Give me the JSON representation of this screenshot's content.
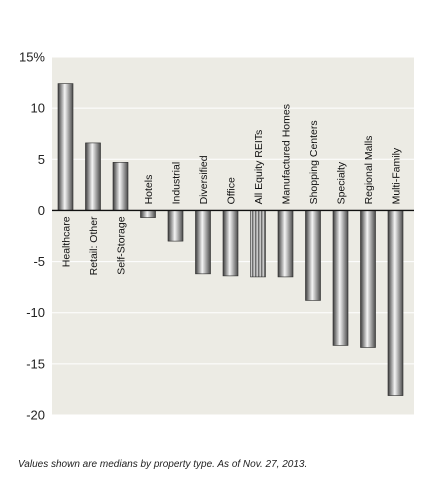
{
  "chart_data": {
    "type": "bar",
    "title": "",
    "xlabel": "",
    "ylabel": "",
    "ylim": [
      -20,
      15
    ],
    "yticks": [
      15,
      10,
      5,
      0,
      -5,
      -10,
      -15,
      -20
    ],
    "ytick_labels": [
      "15%",
      "10",
      "5",
      "0",
      "-5",
      "-10",
      "-15",
      "-20"
    ],
    "grid": true,
    "categories": [
      "Healthcare",
      "Retail: Other",
      "Self-Storage",
      "Hotels",
      "Industrial",
      "Diversified",
      "Office",
      "All Equity REITs",
      "Manufactured Homes",
      "Shopping Centers",
      "Specialty",
      "Regional Malls",
      "Multi-Family"
    ],
    "values": [
      12.4,
      6.6,
      4.7,
      -0.7,
      -3.0,
      -6.2,
      -6.4,
      -6.5,
      -6.5,
      -8.8,
      -13.2,
      -13.4,
      -18.1
    ],
    "highlighted_category": "All Equity REITs",
    "colors": {
      "plot_background": "#ecebe4",
      "grid": "#ffffff",
      "bar_dark": "#4a4a4a",
      "bar_light": "#f2f2f2",
      "highlight_stripe": "#6e6e6e"
    }
  },
  "footnote": "Values shown are medians by property type. As of Nov. 27, 2013."
}
